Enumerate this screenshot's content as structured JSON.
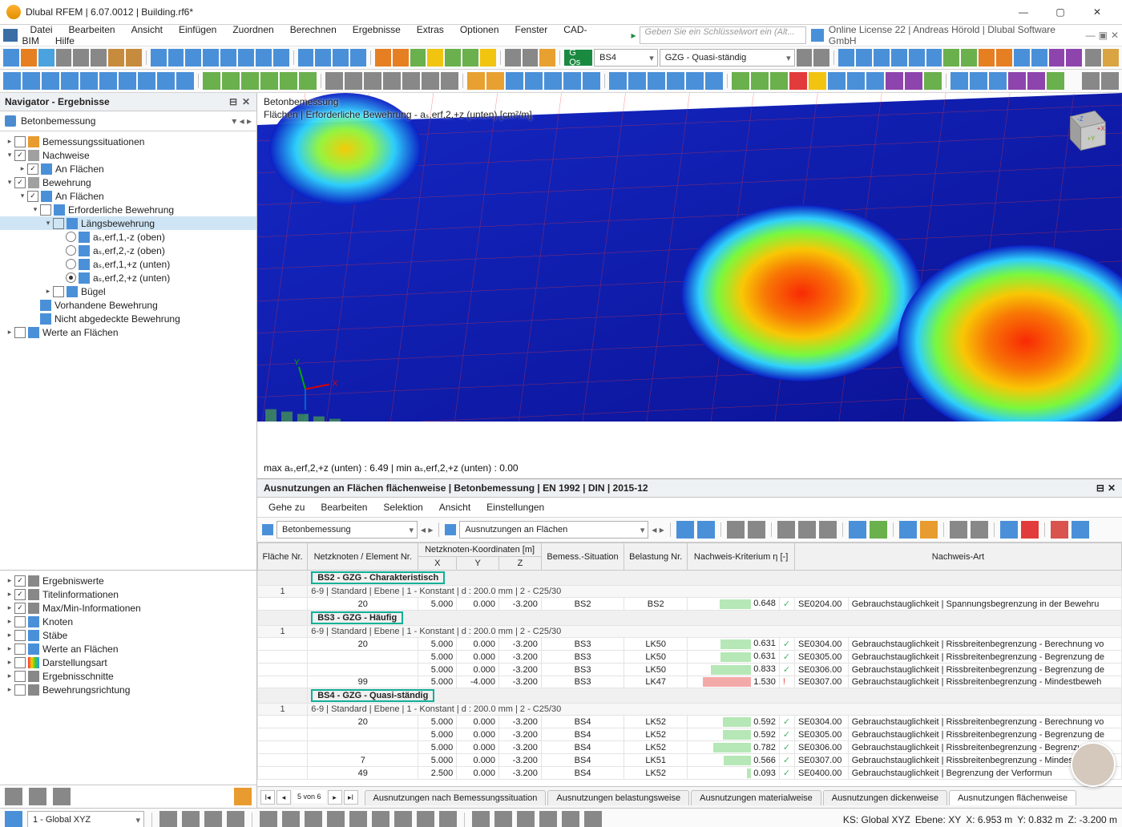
{
  "window": {
    "title": "Dlubal RFEM | 6.07.0012 | Building.rf6*"
  },
  "menu": {
    "items": [
      "Datei",
      "Bearbeiten",
      "Ansicht",
      "Einfügen",
      "Zuordnen",
      "Berechnen",
      "Ergebnisse",
      "Extras",
      "Optionen",
      "Fenster",
      "CAD-BIM",
      "Hilfe"
    ],
    "search_placeholder": "Geben Sie ein Schlüsselwort ein (Alt...",
    "right": "Online License 22 | Andreas Hörold | Dlubal Software GmbH"
  },
  "toolbar1": {
    "combo_load": "BS4",
    "combo_case": "GZG - Quasi-ständig"
  },
  "navigator": {
    "title": "Navigator - Ergebnisse",
    "section": "Betonbemessung",
    "tree": [
      {
        "d": 0,
        "tw": "▸",
        "cb": false,
        "ic": "#e89b2f",
        "label": "Bemessungssituationen"
      },
      {
        "d": 0,
        "tw": "▾",
        "cb": true,
        "ic": "#a0a0a0",
        "label": "Nachweise"
      },
      {
        "d": 1,
        "tw": "▸",
        "cb": true,
        "ic": "#4a90d9",
        "label": "An Flächen"
      },
      {
        "d": 0,
        "tw": "▾",
        "cb": true,
        "ic": "#a0a0a0",
        "label": "Bewehrung"
      },
      {
        "d": 1,
        "tw": "▾",
        "cb": true,
        "ic": "#4a90d9",
        "label": "An Flächen"
      },
      {
        "d": 2,
        "tw": "▾",
        "cb": false,
        "ic": "#4a90d9",
        "label": "Erforderliche Bewehrung"
      },
      {
        "d": 3,
        "tw": "▾",
        "cb": false,
        "ic": "#4a90d9",
        "label": "Längsbewehrung",
        "sel": true
      },
      {
        "d": 4,
        "rd": false,
        "ic": "#4a90d9",
        "label": "aₛ,erf,1,-z (oben)"
      },
      {
        "d": 4,
        "rd": false,
        "ic": "#4a90d9",
        "label": "aₛ,erf,2,-z (oben)"
      },
      {
        "d": 4,
        "rd": false,
        "ic": "#4a90d9",
        "label": "aₛ,erf,1,+z (unten)"
      },
      {
        "d": 4,
        "rd": true,
        "ic": "#4a90d9",
        "label": "aₛ,erf,2,+z (unten)"
      },
      {
        "d": 3,
        "tw": "▸",
        "cb": false,
        "ic": "#4a90d9",
        "label": "Bügel"
      },
      {
        "d": 2,
        "tw": "",
        "ic": "#4a90d9",
        "label": "Vorhandene Bewehrung"
      },
      {
        "d": 2,
        "tw": "",
        "ic": "#4a90d9",
        "label": "Nicht abgedeckte Bewehrung"
      },
      {
        "d": 0,
        "tw": "▸",
        "cb": false,
        "ic": "#4a90d9",
        "label": "Werte an Flächen"
      }
    ],
    "props": [
      {
        "cb": true,
        "ic": "#888",
        "label": "Ergebniswerte"
      },
      {
        "cb": true,
        "ic": "#888",
        "label": "Titelinformationen"
      },
      {
        "cb": true,
        "ic": "#888",
        "label": "Max/Min-Informationen"
      },
      {
        "cb": false,
        "ic": "#4a90d9",
        "label": "Knoten"
      },
      {
        "cb": false,
        "ic": "#4a90d9",
        "label": "Stäbe"
      },
      {
        "cb": false,
        "ic": "#4a90d9",
        "label": "Werte an Flächen"
      },
      {
        "cb": false,
        "ic": "rainbow",
        "label": "Darstellungsart"
      },
      {
        "cb": false,
        "ic": "#888",
        "label": "Ergebnisschnitte"
      },
      {
        "cb": false,
        "ic": "#888",
        "label": "Bewehrungsrichtung"
      }
    ]
  },
  "view": {
    "title": "Betonbemessung",
    "subtitle": "Flächen | Erforderliche Bewehrung - aₛ,erf,2,+z (unten) [cm²/m]",
    "maxline": "max aₛ,erf,2,+z (unten) : 6.49 | min aₛ,erf,2,+z (unten) : 0.00"
  },
  "panel": {
    "title": "Ausnutzungen an Flächen flächenweise | Betonbemessung | EN 1992 | DIN | 2015-12",
    "menu": [
      "Gehe zu",
      "Bearbeiten",
      "Selektion",
      "Ansicht",
      "Einstellungen"
    ],
    "combo1": "Betonbemessung",
    "combo2": "Ausnutzungen an Flächen",
    "headers": [
      "Fläche Nr.",
      "Netzknoten / Element Nr.",
      "X",
      "Y",
      "Z",
      "Bemess.-Situation",
      "Belastung Nr.",
      "Nachweis-Kriterium η [-]",
      "",
      "Nachweis-Art",
      ""
    ],
    "hdr_group": "Netzknoten-Koordinaten [m]",
    "groups": [
      {
        "hl": "BS2 - GZG - Charakteristisch",
        "no": "1",
        "sub": "6-9 | Standard | Ebene | 1 - Konstant | d : 200.0 mm | 2 - C25/30",
        "rows": [
          {
            "elem": "20",
            "x": "5.000",
            "y": "0.000",
            "z": "-3.200",
            "sit": "BS2",
            "load": "BS2",
            "eta": "0.648",
            "ok": true,
            "code": "SE0204.00",
            "desc": "Gebrauchstauglichkeit | Spannungsbegrenzung in der Bewehru"
          }
        ]
      },
      {
        "hl": "BS3 - GZG - Häufig",
        "no": "1",
        "sub": "6-9 | Standard | Ebene | 1 - Konstant | d : 200.0 mm | 2 - C25/30",
        "rows": [
          {
            "elem": "20",
            "x": "5.000",
            "y": "0.000",
            "z": "-3.200",
            "sit": "BS3",
            "load": "LK50",
            "eta": "0.631",
            "ok": true,
            "code": "SE0304.00",
            "desc": "Gebrauchstauglichkeit | Rissbreitenbegrenzung - Berechnung vo"
          },
          {
            "elem": "",
            "x": "5.000",
            "y": "0.000",
            "z": "-3.200",
            "sit": "BS3",
            "load": "LK50",
            "eta": "0.631",
            "ok": true,
            "code": "SE0305.00",
            "desc": "Gebrauchstauglichkeit | Rissbreitenbegrenzung - Begrenzung de"
          },
          {
            "elem": "",
            "x": "5.000",
            "y": "0.000",
            "z": "-3.200",
            "sit": "BS3",
            "load": "LK50",
            "eta": "0.833",
            "ok": true,
            "code": "SE0306.00",
            "desc": "Gebrauchstauglichkeit | Rissbreitenbegrenzung - Begrenzung de"
          },
          {
            "elem": "99",
            "x": "5.000",
            "y": "-4.000",
            "z": "-3.200",
            "sit": "BS3",
            "load": "LK47",
            "eta": "1.530",
            "ok": false,
            "code": "SE0307.00",
            "desc": "Gebrauchstauglichkeit | Rissbreitenbegrenzung - Mindestbeweh"
          }
        ]
      },
      {
        "hl": "BS4 - GZG - Quasi-ständig",
        "no": "1",
        "sub": "6-9 | Standard | Ebene | 1 - Konstant | d : 200.0 mm | 2 - C25/30",
        "rows": [
          {
            "elem": "20",
            "x": "5.000",
            "y": "0.000",
            "z": "-3.200",
            "sit": "BS4",
            "load": "LK52",
            "eta": "0.592",
            "ok": true,
            "code": "SE0304.00",
            "desc": "Gebrauchstauglichkeit | Rissbreitenbegrenzung - Berechnung vo"
          },
          {
            "elem": "",
            "x": "5.000",
            "y": "0.000",
            "z": "-3.200",
            "sit": "BS4",
            "load": "LK52",
            "eta": "0.592",
            "ok": true,
            "code": "SE0305.00",
            "desc": "Gebrauchstauglichkeit | Rissbreitenbegrenzung - Begrenzung de"
          },
          {
            "elem": "",
            "x": "5.000",
            "y": "0.000",
            "z": "-3.200",
            "sit": "BS4",
            "load": "LK52",
            "eta": "0.782",
            "ok": true,
            "code": "SE0306.00",
            "desc": "Gebrauchstauglichkeit | Rissbreitenbegrenzung - Begrenzung de"
          },
          {
            "elem": "7",
            "x": "5.000",
            "y": "0.000",
            "z": "-3.200",
            "sit": "BS4",
            "load": "LK51",
            "eta": "0.566",
            "ok": true,
            "code": "SE0307.00",
            "desc": "Gebrauchstauglichkeit | Rissbreitenbegrenzung - Mindestbeweh"
          },
          {
            "elem": "49",
            "x": "2.500",
            "y": "0.000",
            "z": "-3.200",
            "sit": "BS4",
            "load": "LK52",
            "eta": "0.093",
            "ok": true,
            "code": "SE0400.00",
            "desc": "Gebrauchstauglichkeit | Begrenzung der Verformun"
          }
        ]
      }
    ],
    "tabs": {
      "page": "5 von 6",
      "items": [
        "Ausnutzungen nach Bemessungssituation",
        "Ausnutzungen belastungsweise",
        "Ausnutzungen materialweise",
        "Ausnutzungen dickenweise",
        "Ausnutzungen flächenweise"
      ],
      "active": 4
    }
  },
  "status": {
    "l": "1 - Global XYZ",
    "mid": "KS: Global XYZ",
    "ebene": "Ebene: XY",
    "x": "X: 6.953 m",
    "y": "Y: 0.832 m",
    "z": "Z: -3.200 m"
  },
  "colors": {
    "accent": "#0fb097",
    "ok": "#46b569",
    "fail": "#e23b3b",
    "barok": "#b6e7b6",
    "barfail": "#f4a9a9"
  }
}
